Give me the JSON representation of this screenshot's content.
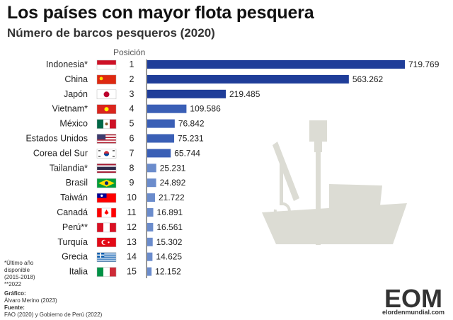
{
  "header": {
    "title": "Los países con mayor flota pesquera",
    "subtitle": "Número de barcos pesqueros (2020)",
    "position_label": "Posición"
  },
  "footer": {
    "notes": [
      "*Último año disponible (2015-2018)",
      "**2022"
    ],
    "chart_label": "Gráfico:",
    "chart_author": "Álvaro Merino (2023)",
    "source_label": "Fuente:",
    "source": "FAO (2020) y Gobierno de Perú (2022)",
    "logo": "EOM",
    "logo_site": "elordenmundial.com"
  },
  "colors": {
    "dark_bar": "#1f3d99",
    "mid_bar": "#3a5fb6",
    "light_bar": "#6b8ccc",
    "boat": "#dcdcd4"
  },
  "chart_data": {
    "type": "bar",
    "orientation": "horizontal",
    "categories": [
      "Indonesia*",
      "China",
      "Japón",
      "Vietnam*",
      "México",
      "Estados Unidos",
      "Corea del Sur",
      "Tailandia*",
      "Brasil",
      "Taiwán",
      "Canadá",
      "Perú**",
      "Turquía",
      "Grecia",
      "Italia"
    ],
    "positions": [
      "1",
      "2",
      "3",
      "4",
      "5",
      "6",
      "7",
      "8",
      "9",
      "10",
      "11",
      "12",
      "13",
      "14",
      "15"
    ],
    "values": [
      719769,
      563262,
      219485,
      109586,
      76842,
      75231,
      65744,
      25231,
      24892,
      21722,
      16891,
      16561,
      15302,
      14625,
      12152
    ],
    "value_labels": [
      "719.769",
      "563.262",
      "219.485",
      "109.586",
      "76.842",
      "75.231",
      "65.744",
      "25.231",
      "24.892",
      "21.722",
      "16.891",
      "16.561",
      "15.302",
      "14.625",
      "12.152"
    ],
    "flags": [
      "indonesia-flag",
      "china-flag",
      "japan-flag",
      "vietnam-flag",
      "mexico-flag",
      "usa-flag",
      "south-korea-flag",
      "thailand-flag",
      "brazil-flag",
      "taiwan-flag",
      "canada-flag",
      "peru-flag",
      "turkey-flag",
      "greece-flag",
      "italy-flag"
    ],
    "title": "Los países con mayor flota pesquera",
    "subtitle": "Número de barcos pesqueros (2020)",
    "xlim": [
      0,
      719769
    ],
    "grid": false,
    "legend": "none"
  }
}
